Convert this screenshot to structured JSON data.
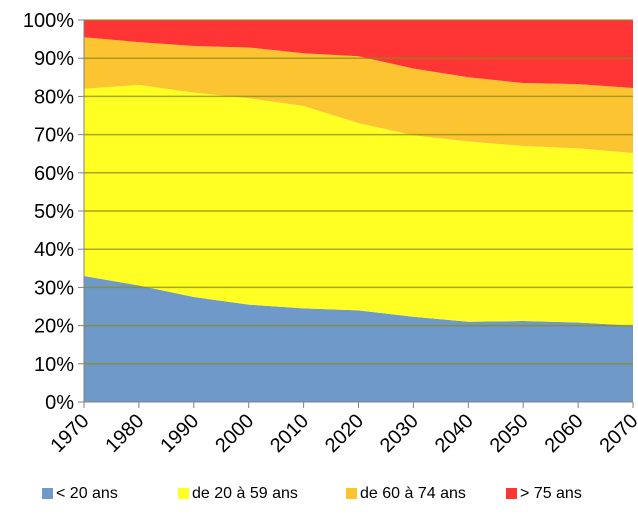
{
  "chart_data": {
    "type": "area",
    "stacked": true,
    "normalized": true,
    "x": [
      1970,
      1980,
      1990,
      2000,
      2010,
      2020,
      2030,
      2040,
      2050,
      2060,
      2070
    ],
    "x_tick_labels": [
      "1970",
      "1980",
      "1990",
      "2000",
      "2010",
      "2020",
      "2030",
      "2040",
      "2050",
      "2060",
      "2070"
    ],
    "y_tick_labels": [
      "0%",
      "10%",
      "20%",
      "30%",
      "40%",
      "50%",
      "60%",
      "70%",
      "80%",
      "90%",
      "100%"
    ],
    "ylim": [
      0,
      100
    ],
    "grid": true,
    "legend_position": "bottom",
    "series": [
      {
        "name": "< 20 ans",
        "color": "#6e99c9",
        "values": [
          33.0,
          30.5,
          27.5,
          25.5,
          24.5,
          24.0,
          22.3,
          21.0,
          21.2,
          20.8,
          20.0
        ]
      },
      {
        "name": "de 20 à 59 ans",
        "color": "#ffff23",
        "values": [
          49.0,
          52.5,
          53.5,
          54.0,
          53.0,
          49.0,
          47.5,
          47.2,
          45.8,
          45.6,
          45.2
        ]
      },
      {
        "name": "de 60 à 74 ans",
        "color": "#fdc431",
        "values": [
          13.5,
          11.2,
          12.2,
          13.3,
          13.8,
          17.5,
          17.5,
          16.8,
          16.5,
          16.8,
          17.0
        ]
      },
      {
        "name": "> 75 ans",
        "color": "#fe3435",
        "values": [
          4.5,
          5.8,
          6.8,
          7.2,
          8.7,
          9.5,
          12.7,
          15.0,
          16.5,
          16.8,
          17.8
        ]
      }
    ]
  }
}
